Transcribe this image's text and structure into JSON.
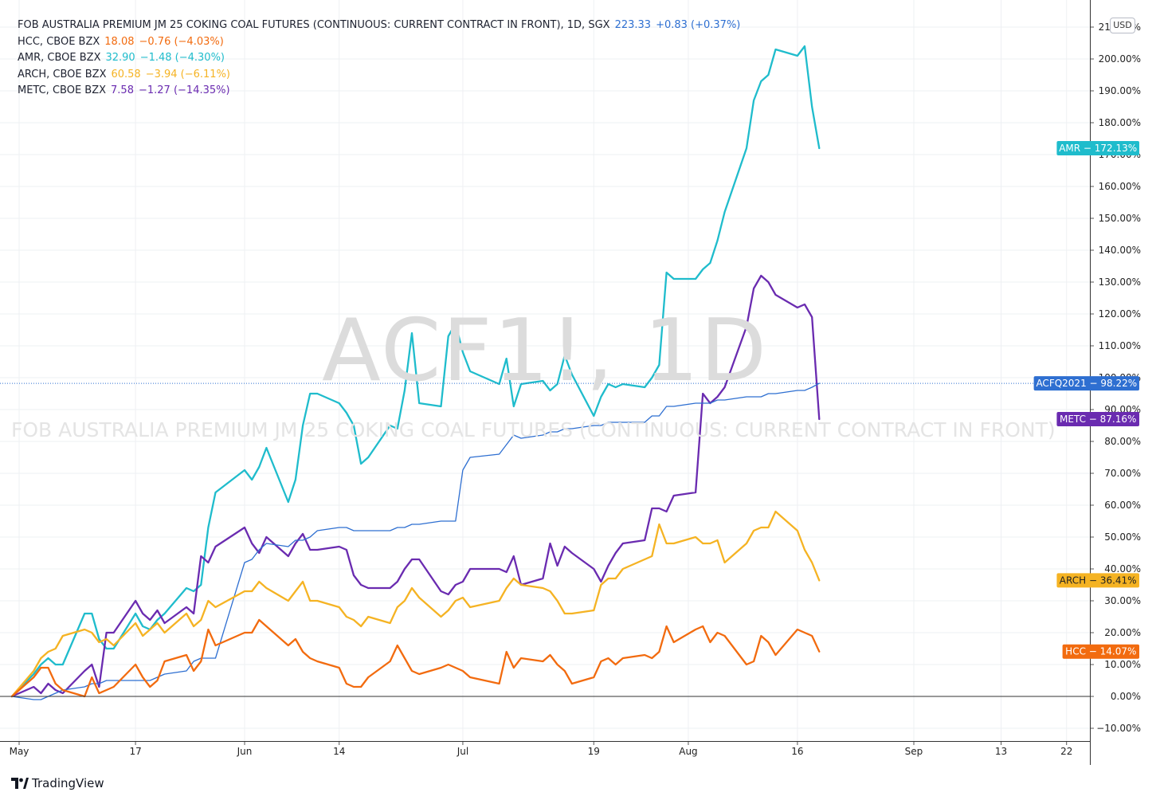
{
  "watermark": {
    "symbol_text": "ACF1!, 1D",
    "description_text": "FOB AUSTRALIA PREMIUM JM 25 COKING COAL FUTURES (CONTINUOUS: CURRENT CONTRACT IN FRONT)"
  },
  "currency_badge": "USD",
  "branding": {
    "logo_text": "TradingView"
  },
  "legend": [
    {
      "symbol": "FOB AUSTRALIA PREMIUM JM 25 COKING COAL FUTURES (CONTINUOUS: CURRENT CONTRACT IN FRONT), 1D, SGX",
      "value": "223.33",
      "change": "+0.83 (+0.37%)",
      "color": "#2e6fd1"
    },
    {
      "symbol": "HCC, CBOE BZX",
      "value": "18.08",
      "change": "−0.76 (−4.03%)",
      "color": "#f26b0f"
    },
    {
      "symbol": "AMR, CBOE BZX",
      "value": "32.90",
      "change": "−1.48 (−4.30%)",
      "color": "#1fbccc"
    },
    {
      "symbol": "ARCH, CBOE BZX",
      "value": "60.58",
      "change": "−3.94 (−6.11%)",
      "color": "#f5b323"
    },
    {
      "symbol": "METC, CBOE BZX",
      "value": "7.58",
      "change": "−1.27 (−14.35%)",
      "color": "#6a2bb0"
    }
  ],
  "chart_data": {
    "type": "line",
    "title": "",
    "y_unit": "percent change",
    "ylim": [
      -13,
      212
    ],
    "y_ticks": [
      -10,
      0,
      10,
      20,
      30,
      40,
      50,
      60,
      70,
      80,
      90,
      100,
      110,
      120,
      130,
      140,
      150,
      160,
      170,
      180,
      190,
      200,
      210
    ],
    "x_range": [
      "2021-04-29",
      "2021-09-26"
    ],
    "x_ticks": [
      {
        "date": "2021-05-01",
        "label": "May"
      },
      {
        "date": "2021-05-17",
        "label": "17"
      },
      {
        "date": "2021-06-01",
        "label": "Jun"
      },
      {
        "date": "2021-06-14",
        "label": "14"
      },
      {
        "date": "2021-07-01",
        "label": "Jul"
      },
      {
        "date": "2021-07-19",
        "label": "19"
      },
      {
        "date": "2021-08-01",
        "label": "Aug"
      },
      {
        "date": "2021-08-16",
        "label": "16"
      },
      {
        "date": "2021-09-01",
        "label": "Sep"
      },
      {
        "date": "2021-09-13",
        "label": "13"
      },
      {
        "date": "2021-09-22",
        "label": "22"
      }
    ],
    "grid": true,
    "legend_position": "top-left",
    "series": [
      {
        "name": "AMR",
        "color": "#1fbccc",
        "width": 2.3,
        "label": "AMR − 172.13%",
        "x": [
          "2021-04-30",
          "2021-05-03",
          "2021-05-04",
          "2021-05-05",
          "2021-05-06",
          "2021-05-07",
          "2021-05-10",
          "2021-05-11",
          "2021-05-12",
          "2021-05-13",
          "2021-05-14",
          "2021-05-17",
          "2021-05-18",
          "2021-05-19",
          "2021-05-20",
          "2021-05-21",
          "2021-05-24",
          "2021-05-25",
          "2021-05-26",
          "2021-05-27",
          "2021-05-28",
          "2021-06-01",
          "2021-06-02",
          "2021-06-03",
          "2021-06-04",
          "2021-06-07",
          "2021-06-08",
          "2021-06-09",
          "2021-06-10",
          "2021-06-11",
          "2021-06-14",
          "2021-06-15",
          "2021-06-16",
          "2021-06-17",
          "2021-06-18",
          "2021-06-21",
          "2021-06-22",
          "2021-06-23",
          "2021-06-24",
          "2021-06-25",
          "2021-06-28",
          "2021-06-29",
          "2021-06-30",
          "2021-07-01",
          "2021-07-02",
          "2021-07-06",
          "2021-07-07",
          "2021-07-08",
          "2021-07-09",
          "2021-07-12",
          "2021-07-13",
          "2021-07-14",
          "2021-07-15",
          "2021-07-16",
          "2021-07-19",
          "2021-07-20",
          "2021-07-21",
          "2021-07-22",
          "2021-07-23",
          "2021-07-26",
          "2021-07-27",
          "2021-07-28",
          "2021-07-29",
          "2021-07-30",
          "2021-08-02",
          "2021-08-03",
          "2021-08-04",
          "2021-08-05",
          "2021-08-06",
          "2021-08-09",
          "2021-08-10",
          "2021-08-11",
          "2021-08-12",
          "2021-08-13",
          "2021-08-16",
          "2021-08-17",
          "2021-08-18",
          "2021-08-19"
        ],
        "y": [
          0,
          7,
          10,
          12,
          10,
          10,
          26,
          26,
          18,
          15,
          15,
          26,
          22,
          21,
          24,
          26,
          34,
          33,
          35,
          53,
          64,
          71,
          68,
          72,
          78,
          61,
          68,
          85,
          95,
          95,
          92,
          89,
          85,
          73,
          75,
          85,
          84,
          96,
          114,
          92,
          91,
          113,
          117,
          108,
          102,
          98,
          106,
          91,
          98,
          99,
          96,
          98,
          107,
          101,
          88,
          94,
          98,
          97,
          98,
          97,
          100,
          104,
          133,
          131,
          131,
          134,
          136,
          143,
          152,
          172,
          187,
          193,
          195,
          203,
          201,
          204,
          185,
          172
        ]
      },
      {
        "name": "METC",
        "color": "#6a2bb0",
        "width": 2.3,
        "label": "METC − 87.16%",
        "x": [
          "2021-04-30",
          "2021-05-03",
          "2021-05-04",
          "2021-05-05",
          "2021-05-06",
          "2021-05-07",
          "2021-05-10",
          "2021-05-11",
          "2021-05-12",
          "2021-05-13",
          "2021-05-14",
          "2021-05-17",
          "2021-05-18",
          "2021-05-19",
          "2021-05-20",
          "2021-05-21",
          "2021-05-24",
          "2021-05-25",
          "2021-05-26",
          "2021-05-27",
          "2021-05-28",
          "2021-06-01",
          "2021-06-02",
          "2021-06-03",
          "2021-06-04",
          "2021-06-07",
          "2021-06-08",
          "2021-06-09",
          "2021-06-10",
          "2021-06-11",
          "2021-06-14",
          "2021-06-15",
          "2021-06-16",
          "2021-06-17",
          "2021-06-18",
          "2021-06-21",
          "2021-06-22",
          "2021-06-23",
          "2021-06-24",
          "2021-06-25",
          "2021-06-28",
          "2021-06-29",
          "2021-06-30",
          "2021-07-01",
          "2021-07-02",
          "2021-07-06",
          "2021-07-07",
          "2021-07-08",
          "2021-07-09",
          "2021-07-12",
          "2021-07-13",
          "2021-07-14",
          "2021-07-15",
          "2021-07-16",
          "2021-07-19",
          "2021-07-20",
          "2021-07-21",
          "2021-07-22",
          "2021-07-23",
          "2021-07-26",
          "2021-07-27",
          "2021-07-28",
          "2021-07-29",
          "2021-07-30",
          "2021-08-02",
          "2021-08-03",
          "2021-08-04",
          "2021-08-05",
          "2021-08-06",
          "2021-08-09",
          "2021-08-10",
          "2021-08-11",
          "2021-08-12",
          "2021-08-13",
          "2021-08-16",
          "2021-08-17",
          "2021-08-18",
          "2021-08-19"
        ],
        "y": [
          0,
          3,
          1,
          4,
          2,
          1,
          8,
          10,
          3,
          20,
          20,
          30,
          26,
          24,
          27,
          23,
          28,
          26,
          44,
          42,
          47,
          53,
          48,
          45,
          50,
          44,
          48,
          51,
          46,
          46,
          47,
          46,
          38,
          35,
          34,
          34,
          36,
          40,
          43,
          43,
          33,
          32,
          35,
          36,
          40,
          40,
          39,
          44,
          35,
          37,
          48,
          41,
          47,
          45,
          40,
          36,
          41,
          45,
          48,
          49,
          59,
          59,
          58,
          63,
          64,
          95,
          92,
          94,
          97,
          116,
          128,
          132,
          130,
          126,
          122,
          123,
          119,
          87
        ]
      },
      {
        "name": "ACFQ2021",
        "color": "#2e6fd1",
        "width": 1.3,
        "label": "ACFQ2021 − 98.22%",
        "hline": 98.22,
        "x": [
          "2021-04-30",
          "2021-05-03",
          "2021-05-04",
          "2021-05-05",
          "2021-05-06",
          "2021-05-07",
          "2021-05-10",
          "2021-05-11",
          "2021-05-12",
          "2021-05-13",
          "2021-05-14",
          "2021-05-17",
          "2021-05-18",
          "2021-05-19",
          "2021-05-20",
          "2021-05-21",
          "2021-05-24",
          "2021-05-25",
          "2021-05-26",
          "2021-05-27",
          "2021-05-28",
          "2021-06-01",
          "2021-06-02",
          "2021-06-03",
          "2021-06-04",
          "2021-06-07",
          "2021-06-08",
          "2021-06-09",
          "2021-06-10",
          "2021-06-11",
          "2021-06-14",
          "2021-06-15",
          "2021-06-16",
          "2021-06-17",
          "2021-06-18",
          "2021-06-21",
          "2021-06-22",
          "2021-06-23",
          "2021-06-24",
          "2021-06-25",
          "2021-06-28",
          "2021-06-29",
          "2021-06-30",
          "2021-07-01",
          "2021-07-02",
          "2021-07-06",
          "2021-07-07",
          "2021-07-08",
          "2021-07-09",
          "2021-07-12",
          "2021-07-13",
          "2021-07-14",
          "2021-07-15",
          "2021-07-16",
          "2021-07-19",
          "2021-07-20",
          "2021-07-21",
          "2021-07-22",
          "2021-07-23",
          "2021-07-26",
          "2021-07-27",
          "2021-07-28",
          "2021-07-29",
          "2021-07-30",
          "2021-08-02",
          "2021-08-03",
          "2021-08-04",
          "2021-08-05",
          "2021-08-06",
          "2021-08-09",
          "2021-08-10",
          "2021-08-11",
          "2021-08-12",
          "2021-08-13",
          "2021-08-16",
          "2021-08-17",
          "2021-08-18",
          "2021-08-19"
        ],
        "y": [
          0,
          -1,
          -1,
          0,
          1,
          2,
          3,
          4,
          4,
          5,
          5,
          5,
          5,
          5,
          6,
          7,
          8,
          11,
          12,
          12,
          12,
          42,
          43,
          46,
          48,
          47,
          49,
          49,
          50,
          52,
          53,
          53,
          52,
          52,
          52,
          52,
          53,
          53,
          54,
          54,
          55,
          55,
          55,
          71,
          75,
          76,
          79,
          82,
          81,
          82,
          83,
          83,
          84,
          84,
          85,
          85,
          86,
          86,
          86,
          86,
          88,
          88,
          91,
          91,
          92,
          92,
          92,
          93,
          93,
          94,
          94,
          94,
          95,
          95,
          96,
          96,
          97,
          98.22
        ]
      },
      {
        "name": "ARCH",
        "color": "#f5b323",
        "width": 2.3,
        "label": "ARCH − 36.41%",
        "x": [
          "2021-04-30",
          "2021-05-03",
          "2021-05-04",
          "2021-05-05",
          "2021-05-06",
          "2021-05-07",
          "2021-05-10",
          "2021-05-11",
          "2021-05-12",
          "2021-05-13",
          "2021-05-14",
          "2021-05-17",
          "2021-05-18",
          "2021-05-19",
          "2021-05-20",
          "2021-05-21",
          "2021-05-24",
          "2021-05-25",
          "2021-05-26",
          "2021-05-27",
          "2021-05-28",
          "2021-06-01",
          "2021-06-02",
          "2021-06-03",
          "2021-06-04",
          "2021-06-07",
          "2021-06-08",
          "2021-06-09",
          "2021-06-10",
          "2021-06-11",
          "2021-06-14",
          "2021-06-15",
          "2021-06-16",
          "2021-06-17",
          "2021-06-18",
          "2021-06-21",
          "2021-06-22",
          "2021-06-23",
          "2021-06-24",
          "2021-06-25",
          "2021-06-28",
          "2021-06-29",
          "2021-06-30",
          "2021-07-01",
          "2021-07-02",
          "2021-07-06",
          "2021-07-07",
          "2021-07-08",
          "2021-07-09",
          "2021-07-12",
          "2021-07-13",
          "2021-07-14",
          "2021-07-15",
          "2021-07-16",
          "2021-07-19",
          "2021-07-20",
          "2021-07-21",
          "2021-07-22",
          "2021-07-23",
          "2021-07-26",
          "2021-07-27",
          "2021-07-28",
          "2021-07-29",
          "2021-07-30",
          "2021-08-02",
          "2021-08-03",
          "2021-08-04",
          "2021-08-05",
          "2021-08-06",
          "2021-08-09",
          "2021-08-10",
          "2021-08-11",
          "2021-08-12",
          "2021-08-13",
          "2021-08-16",
          "2021-08-17",
          "2021-08-18",
          "2021-08-19"
        ],
        "y": [
          0,
          8,
          12,
          14,
          15,
          19,
          21,
          20,
          17,
          18,
          16,
          23,
          19,
          21,
          23,
          20,
          26,
          22,
          24,
          30,
          28,
          33,
          33,
          36,
          34,
          30,
          33,
          36,
          30,
          30,
          28,
          25,
          24,
          22,
          25,
          23,
          28,
          30,
          34,
          31,
          25,
          27,
          30,
          31,
          28,
          30,
          34,
          37,
          35,
          34,
          33,
          30,
          26,
          26,
          27,
          35,
          37,
          37,
          40,
          43,
          44,
          54,
          48,
          48,
          50,
          48,
          48,
          49,
          42,
          48,
          52,
          53,
          53,
          58,
          52,
          46,
          42,
          36.41
        ]
      },
      {
        "name": "HCC",
        "color": "#f26b0f",
        "width": 2.3,
        "label": "HCC − 14.07%",
        "x": [
          "2021-04-30",
          "2021-05-03",
          "2021-05-04",
          "2021-05-05",
          "2021-05-06",
          "2021-05-07",
          "2021-05-10",
          "2021-05-11",
          "2021-05-12",
          "2021-05-13",
          "2021-05-14",
          "2021-05-17",
          "2021-05-18",
          "2021-05-19",
          "2021-05-20",
          "2021-05-21",
          "2021-05-24",
          "2021-05-25",
          "2021-05-26",
          "2021-05-27",
          "2021-05-28",
          "2021-06-01",
          "2021-06-02",
          "2021-06-03",
          "2021-06-04",
          "2021-06-07",
          "2021-06-08",
          "2021-06-09",
          "2021-06-10",
          "2021-06-11",
          "2021-06-14",
          "2021-06-15",
          "2021-06-16",
          "2021-06-17",
          "2021-06-18",
          "2021-06-21",
          "2021-06-22",
          "2021-06-23",
          "2021-06-24",
          "2021-06-25",
          "2021-06-28",
          "2021-06-29",
          "2021-06-30",
          "2021-07-01",
          "2021-07-02",
          "2021-07-06",
          "2021-07-07",
          "2021-07-08",
          "2021-07-09",
          "2021-07-12",
          "2021-07-13",
          "2021-07-14",
          "2021-07-15",
          "2021-07-16",
          "2021-07-19",
          "2021-07-20",
          "2021-07-21",
          "2021-07-22",
          "2021-07-23",
          "2021-07-26",
          "2021-07-27",
          "2021-07-28",
          "2021-07-29",
          "2021-07-30",
          "2021-08-02",
          "2021-08-03",
          "2021-08-04",
          "2021-08-05",
          "2021-08-06",
          "2021-08-09",
          "2021-08-10",
          "2021-08-11",
          "2021-08-12",
          "2021-08-13",
          "2021-08-16",
          "2021-08-17",
          "2021-08-18",
          "2021-08-19"
        ],
        "y": [
          0,
          6,
          9,
          9,
          4,
          2,
          0,
          6,
          1,
          2,
          3,
          10,
          6,
          3,
          5,
          11,
          13,
          8,
          11,
          21,
          16,
          20,
          20,
          24,
          22,
          16,
          18,
          14,
          12,
          11,
          9,
          4,
          3,
          3,
          6,
          11,
          16,
          12,
          8,
          7,
          9,
          10,
          9,
          8,
          6,
          4,
          14,
          9,
          12,
          11,
          13,
          10,
          8,
          4,
          6,
          11,
          12,
          10,
          12,
          13,
          12,
          14,
          22,
          17,
          21,
          22,
          17,
          20,
          19,
          10,
          11,
          19,
          17,
          13,
          21,
          20,
          19,
          14.07
        ]
      }
    ]
  }
}
